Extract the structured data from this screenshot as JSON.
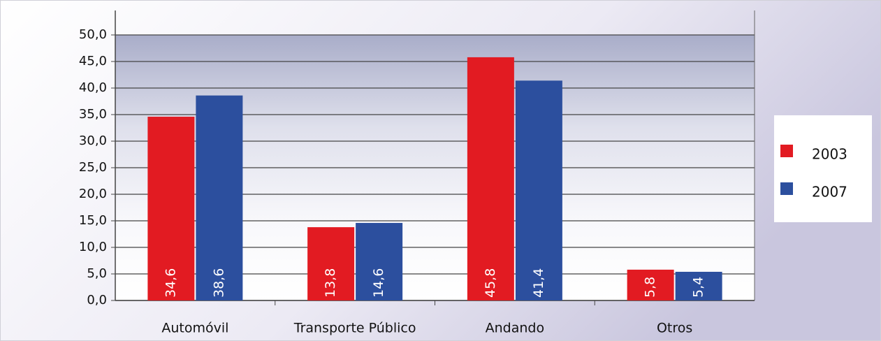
{
  "chart_data": {
    "type": "bar",
    "categories": [
      "Automóvil",
      "Transporte Público",
      "Andando",
      "Otros"
    ],
    "series": [
      {
        "name": "2003",
        "color": "#e21b22",
        "values": [
          34.6,
          13.8,
          45.8,
          5.8
        ],
        "value_labels": [
          "34,6",
          "13,8",
          "45,8",
          "5,8"
        ]
      },
      {
        "name": "2007",
        "color": "#2c4f9e",
        "values": [
          38.6,
          14.6,
          41.4,
          5.4
        ],
        "value_labels": [
          "38,6",
          "14,6",
          "41,4",
          "5,4"
        ]
      }
    ],
    "ylim": [
      0,
      50
    ],
    "yticks": [
      {
        "value": 0,
        "label": "0,0"
      },
      {
        "value": 5,
        "label": "5,0"
      },
      {
        "value": 10,
        "label": "10,0"
      },
      {
        "value": 15,
        "label": "15,0"
      },
      {
        "value": 20,
        "label": "20,0"
      },
      {
        "value": 25,
        "label": "25,0"
      },
      {
        "value": 30,
        "label": "30,0"
      },
      {
        "value": 35,
        "label": "35,0"
      },
      {
        "value": 40,
        "label": "40,0"
      },
      {
        "value": 45,
        "label": "45,0"
      },
      {
        "value": 50,
        "label": "50,0"
      }
    ],
    "grid": true,
    "legend": "right"
  }
}
